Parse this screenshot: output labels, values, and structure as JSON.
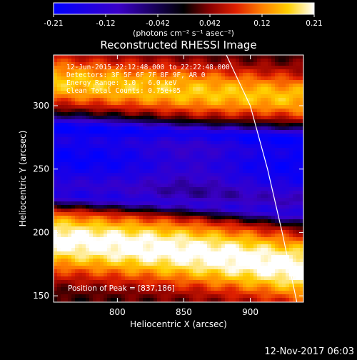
{
  "chart_data": {
    "type": "heatmap",
    "title": "Reconstructed RHESSI Image",
    "xlabel": "Heliocentric X (arcsec)",
    "ylabel": "Heliocentric Y (arcsec)",
    "xlim": [
      752,
      940
    ],
    "ylim": [
      145,
      340
    ],
    "xticks": [
      800,
      850,
      900
    ],
    "yticks": [
      150,
      200,
      250,
      300
    ],
    "colorbar": {
      "ticks": [
        "-0.21",
        "-0.12",
        "-0.042",
        "0.042",
        "0.12",
        "0.21"
      ],
      "vmin": -0.21,
      "vmax": 0.21,
      "unit_label": "(photons cm⁻² s⁻¹ asec⁻²)"
    },
    "annotations": [
      "12-Jun-2015 22:12:48.000 to 22:22:48.000",
      "Detectors: 3F 5F 6F 7F 8F 9F, AR 0",
      "Energy Range: 3.0 - 6.0 keV",
      "Clean   Total Counts: 0.75e+05"
    ],
    "peak_label": "Position of Peak = [837,186]",
    "limb_arc": [
      [
        882,
        340
      ],
      [
        900,
        300
      ],
      [
        913,
        250
      ],
      [
        924,
        200
      ],
      [
        932,
        160
      ],
      [
        935,
        145
      ]
    ],
    "structure": {
      "band_centers_y": [
        312,
        255,
        190
      ],
      "band_levels": [
        0.12,
        -0.15,
        0.18
      ]
    }
  },
  "footer": {
    "timestamp": "12-Nov-2017 06:03"
  }
}
